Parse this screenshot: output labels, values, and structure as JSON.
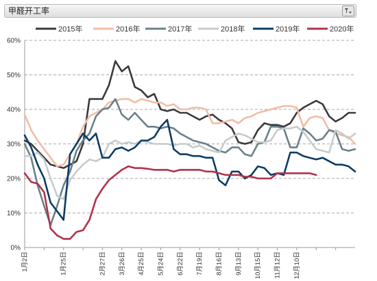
{
  "header": {
    "title": "甲醛开工率",
    "filter_icon": "filter-dropdown-icon"
  },
  "chart_data": {
    "type": "line",
    "title": "",
    "xlabel": "",
    "ylabel": "",
    "ylim": [
      0,
      0.6
    ],
    "y_ticks": [
      0,
      0.1,
      0.2,
      0.3,
      0.4,
      0.5,
      0.6
    ],
    "y_tick_labels": [
      "0%",
      "10%",
      "20%",
      "30%",
      "40%",
      "50%",
      "60%"
    ],
    "x_points": 52,
    "x_tick_indices": [
      0,
      3,
      6,
      9,
      12,
      15,
      18,
      21,
      24,
      27,
      30,
      33,
      36,
      39,
      42,
      45,
      48
    ],
    "x_tick_labels": [
      "1月2日",
      "",
      "1月25日",
      "",
      "2月27日",
      "3月26日",
      "4月25日",
      "5月24日",
      "6月22日",
      "7月19日",
      "8月16日",
      "9月13日",
      "10月15日",
      "11月12日",
      "12月10日",
      "",
      ""
    ],
    "grid": "horizontal-dashed",
    "legend_position": "top",
    "series": [
      {
        "name": "2015年",
        "color": "#3a3a3a",
        "values": [
          0.31,
          0.3,
          0.28,
          0.26,
          0.24,
          0.235,
          0.23,
          0.24,
          0.25,
          0.3,
          0.43,
          0.43,
          0.43,
          0.47,
          0.54,
          0.51,
          0.525,
          0.465,
          0.455,
          0.435,
          0.445,
          0.4,
          0.395,
          0.4,
          0.39,
          0.39,
          0.38,
          0.37,
          0.38,
          0.385,
          0.37,
          0.36,
          0.345,
          0.305,
          0.3,
          0.305,
          0.34,
          0.36,
          0.355,
          0.355,
          0.35,
          0.36,
          0.39,
          0.405,
          0.415,
          0.425,
          0.415,
          0.38,
          0.365,
          0.375,
          0.39,
          0.39
        ]
      },
      {
        "name": "2016年",
        "color": "#f2bca6",
        "values": [
          0.385,
          0.34,
          0.31,
          0.285,
          0.26,
          0.235,
          0.24,
          0.27,
          0.3,
          0.35,
          0.38,
          0.39,
          0.4,
          0.42,
          0.425,
          0.43,
          0.43,
          0.42,
          0.43,
          0.425,
          0.42,
          0.42,
          0.41,
          0.415,
          0.4,
          0.4,
          0.405,
          0.405,
          0.4,
          0.36,
          0.36,
          0.365,
          0.37,
          0.36,
          0.375,
          0.38,
          0.39,
          0.395,
          0.4,
          0.405,
          0.41,
          0.41,
          0.405,
          0.35,
          0.375,
          0.38,
          0.375,
          0.34,
          0.33,
          0.325,
          0.32,
          0.3
        ]
      },
      {
        "name": "2017年",
        "color": "#6a8089",
        "values": [
          0.3,
          0.26,
          0.18,
          0.12,
          0.065,
          0.12,
          0.18,
          0.22,
          0.28,
          0.31,
          0.33,
          0.38,
          0.4,
          0.405,
          0.43,
          0.385,
          0.37,
          0.39,
          0.37,
          0.35,
          0.35,
          0.345,
          0.35,
          0.345,
          0.33,
          0.32,
          0.31,
          0.305,
          0.3,
          0.29,
          0.28,
          0.275,
          0.29,
          0.29,
          0.27,
          0.265,
          0.3,
          0.305,
          0.35,
          0.35,
          0.345,
          0.29,
          0.29,
          0.345,
          0.33,
          0.31,
          0.315,
          0.34,
          0.335,
          0.285,
          0.28,
          0.285
        ]
      },
      {
        "name": "2018年",
        "color": "#c6cbcc",
        "values": [
          0.265,
          0.265,
          0.275,
          0.255,
          0.2,
          0.15,
          0.14,
          0.195,
          0.22,
          0.24,
          0.255,
          0.25,
          0.26,
          0.3,
          0.31,
          0.3,
          0.305,
          0.3,
          0.31,
          0.305,
          0.3,
          0.3,
          0.3,
          0.295,
          0.3,
          0.3,
          0.29,
          0.295,
          0.285,
          0.28,
          0.275,
          0.31,
          0.32,
          0.33,
          0.325,
          0.315,
          0.305,
          0.305,
          0.31,
          0.34,
          0.345,
          0.345,
          0.35,
          0.335,
          0.31,
          0.285,
          0.28,
          0.275,
          0.34,
          0.33,
          0.315,
          0.33
        ]
      },
      {
        "name": "2019年",
        "color": "#0a3c64",
        "values": [
          0.325,
          0.29,
          0.24,
          0.2,
          0.13,
          0.105,
          0.08,
          0.27,
          0.3,
          0.33,
          0.31,
          0.33,
          0.26,
          0.26,
          0.285,
          0.29,
          0.28,
          0.29,
          0.31,
          0.31,
          0.32,
          0.35,
          0.37,
          0.285,
          0.27,
          0.27,
          0.265,
          0.265,
          0.26,
          0.26,
          0.195,
          0.18,
          0.22,
          0.22,
          0.2,
          0.21,
          0.235,
          0.23,
          0.21,
          0.215,
          0.21,
          0.275,
          0.275,
          0.265,
          0.26,
          0.255,
          0.26,
          0.25,
          0.24,
          0.24,
          0.235,
          0.22
        ]
      },
      {
        "name": "2020年",
        "color": "#b2314a",
        "values": [
          0.215,
          0.19,
          0.185,
          0.16,
          0.055,
          0.035,
          0.025,
          0.025,
          0.045,
          0.05,
          0.08,
          0.14,
          0.17,
          0.195,
          0.21,
          0.225,
          0.235,
          0.23,
          0.23,
          0.228,
          0.225,
          0.225,
          0.225,
          0.22,
          0.225,
          0.225,
          0.225,
          0.225,
          0.22,
          0.22,
          0.215,
          0.21,
          0.21,
          0.21,
          0.205,
          0.205,
          0.2,
          0.2,
          0.2,
          0.215,
          0.215,
          0.215,
          0.215,
          0.215,
          0.215,
          0.21,
          null,
          null,
          null,
          null,
          null,
          null
        ]
      }
    ]
  }
}
